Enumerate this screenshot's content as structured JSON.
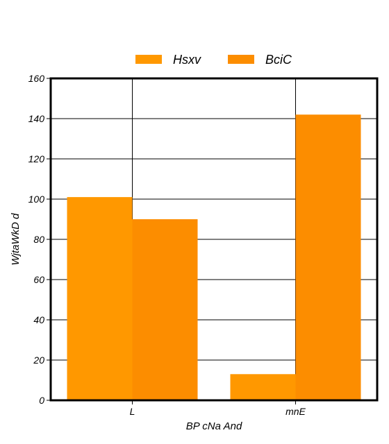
{
  "chart_data": {
    "type": "bar",
    "title": "",
    "xlabel": "BP cNa And",
    "ylabel": "WjtaWkD d",
    "categories": [
      "L",
      "mnE"
    ],
    "series": [
      {
        "name": "Hsxv",
        "values": [
          101,
          13
        ],
        "color": "#ff9800"
      },
      {
        "name": "BciC",
        "values": [
          90,
          142
        ],
        "color": "#fc8d00"
      }
    ],
    "ylim": [
      0,
      160
    ],
    "yticks": [
      0,
      20,
      40,
      60,
      80,
      100,
      120,
      140,
      160
    ],
    "grid": true,
    "legend_position": "top-center"
  }
}
